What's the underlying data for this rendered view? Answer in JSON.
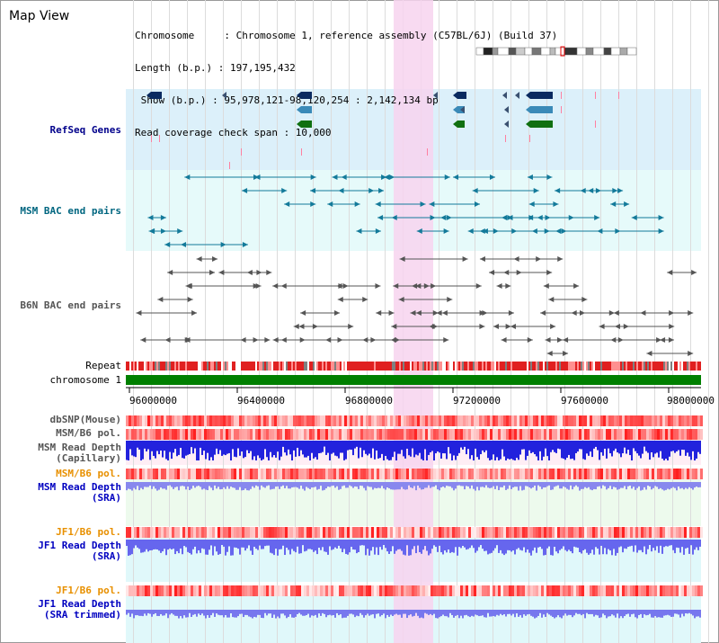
{
  "header": {
    "title": "Map View",
    "info_lines": [
      "Chromosome     : Chromosome 1, reference assembly (C57BL/6J) (Build 37)",
      "Length (b.p.) : 197,195,432",
      " Show (b.p.) : 95,978,121-98,120,254 : 2,142,134 bp",
      "Read coverage check span : 10,000"
    ]
  },
  "tracks": {
    "refseq": "RefSeq Genes",
    "msm_bac": "MSM BAC end pairs",
    "b6n_bac": "B6N BAC end pairs",
    "repeat": "Repeat",
    "chromosome": "chromosome 1",
    "dbsnp": "dbSNP(Mouse)",
    "msm_b6_pol_1": "MSM/B6 pol.",
    "msm_read_depth_cap_1": "MSM Read Depth",
    "msm_read_depth_cap_2": "(Capillary)",
    "msm_b6_pol_2": "MSM/B6 pol.",
    "msm_read_depth_sra_1": "MSM Read Depth",
    "msm_read_depth_sra_2": "(SRA)",
    "jf1_b6_pol_1": "JF1/B6 pol.",
    "jf1_read_depth_sra_1": "JF1 Read Depth",
    "jf1_read_depth_sra_2": "(SRA)",
    "jf1_b6_pol_2": "JF1/B6 pol.",
    "jf1_read_depth_trim_1": "JF1 Read Depth",
    "jf1_read_depth_trim_2": "(SRA trimmed)"
  },
  "axis": {
    "ticks": [
      "96000000",
      "96400000",
      "96800000",
      "97200000",
      "97600000",
      "98000000"
    ]
  },
  "colors": {
    "refseq_label": "#00008b",
    "msm_bac_label": "#006680",
    "b6n_label": "#555555",
    "orange_label": "#e89000",
    "blue_label": "#0000c0"
  }
}
